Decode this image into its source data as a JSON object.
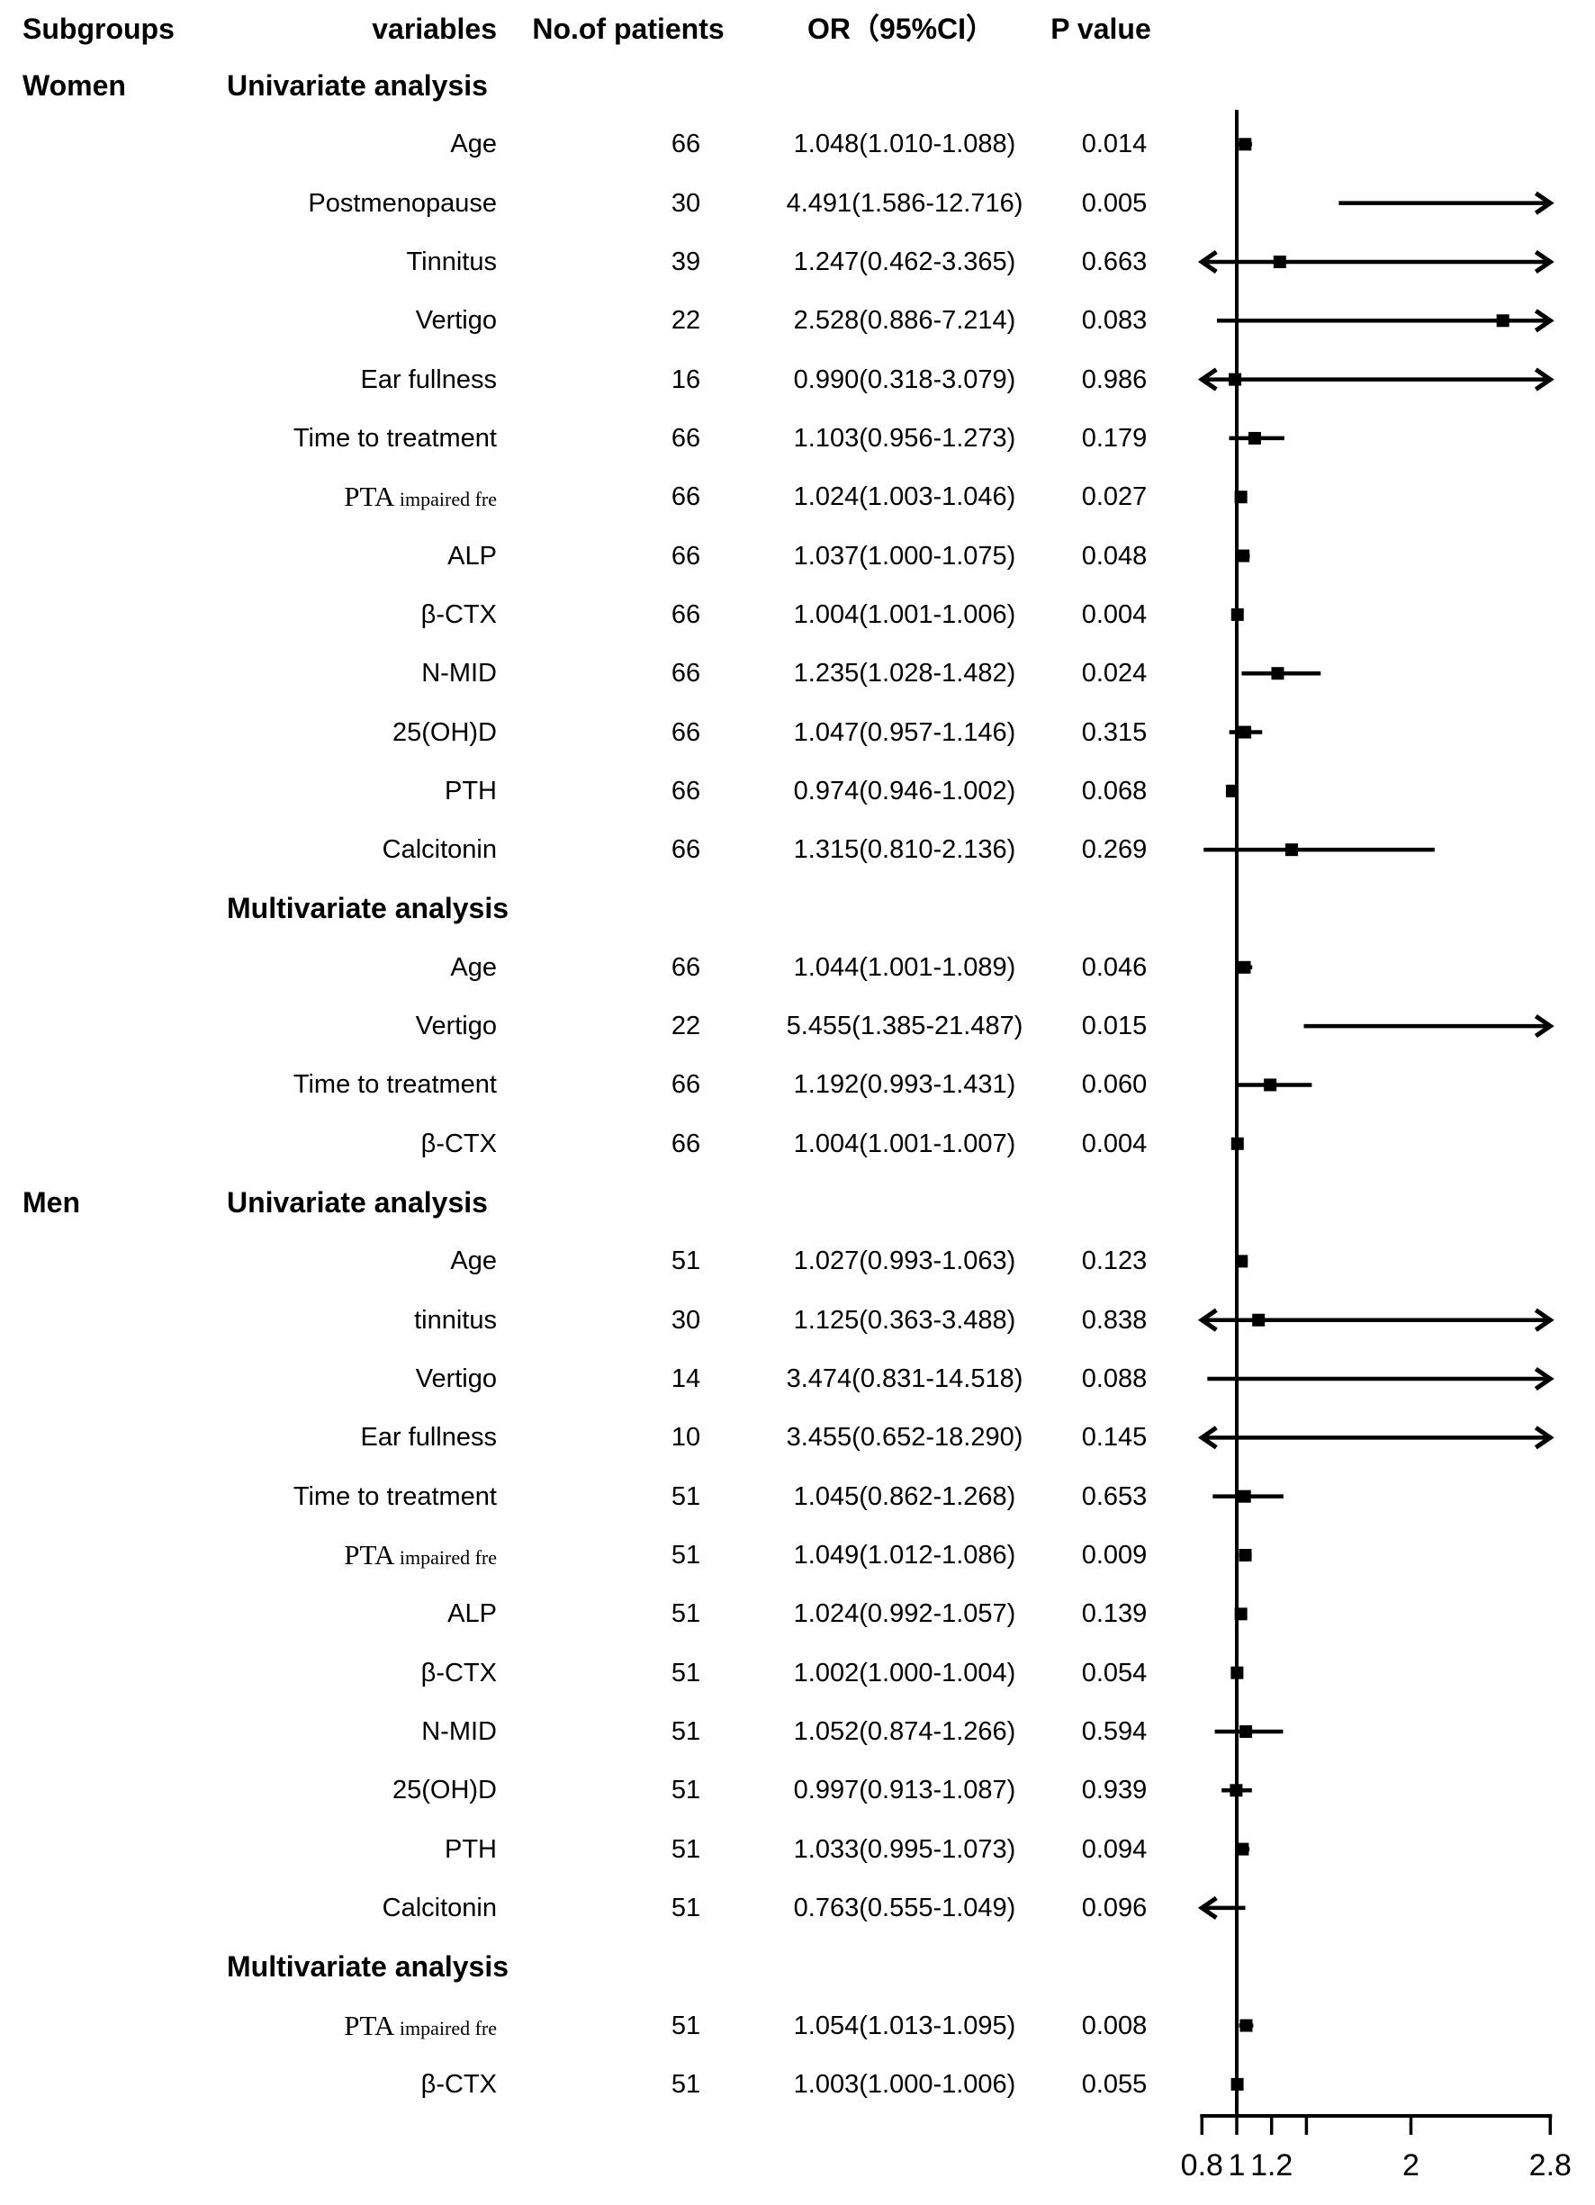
{
  "page": {
    "background": "#ffffff",
    "ink": "#000000"
  },
  "columns": {
    "subgroups": "Subgroups",
    "variables": "variables",
    "patients": "No.of patients",
    "or_ci": "OR（95%CI）",
    "p_value": "P value"
  },
  "chart_data": {
    "type": "forest",
    "xlabel": "",
    "xlim": [
      0.8,
      2.8
    ],
    "axis": {
      "min": 0.8,
      "max": 2.8,
      "reference_value": 1,
      "ticks": [
        {
          "v": 0.8,
          "label": "0.8"
        },
        {
          "v": 1,
          "label": "1"
        },
        {
          "v": 1.2,
          "label": "1.2"
        },
        {
          "v": 1.4,
          "label": ""
        },
        {
          "v": 2,
          "label": "2"
        },
        {
          "v": 2.8,
          "label": "2.8"
        }
      ]
    },
    "rows": [
      {
        "kind": "section",
        "subgroup": "Women",
        "label": "Univariate analysis"
      },
      {
        "kind": "data",
        "variable": "Age",
        "n": "66",
        "or_ci": "1.048(1.010-1.088)",
        "p": "0.014",
        "or": 1.048,
        "lo": 1.01,
        "hi": 1.088
      },
      {
        "kind": "data",
        "variable": "Postmenopause",
        "n": "30",
        "or_ci": "4.491(1.586-12.716)",
        "p": "0.005",
        "or": 4.491,
        "lo": 1.586,
        "hi": 12.716
      },
      {
        "kind": "data",
        "variable": "Tinnitus",
        "n": "39",
        "or_ci": "1.247(0.462-3.365)",
        "p": "0.663",
        "or": 1.247,
        "lo": 0.462,
        "hi": 3.365
      },
      {
        "kind": "data",
        "variable": "Vertigo",
        "n": "22",
        "or_ci": "2.528(0.886-7.214)",
        "p": "0.083",
        "or": 2.528,
        "lo": 0.886,
        "hi": 7.214
      },
      {
        "kind": "data",
        "variable": "Ear fullness",
        "n": "16",
        "or_ci": "0.990(0.318-3.079)",
        "p": "0.986",
        "or": 0.99,
        "lo": 0.318,
        "hi": 3.079
      },
      {
        "kind": "data",
        "variable": "Time to treatment",
        "n": "66",
        "or_ci": "1.103(0.956-1.273)",
        "p": "0.179",
        "or": 1.103,
        "lo": 0.956,
        "hi": 1.273
      },
      {
        "kind": "data",
        "variable": "PTA",
        "variable_sub": "impaired fre",
        "n": "66",
        "or_ci": "1.024(1.003-1.046)",
        "p": "0.027",
        "or": 1.024,
        "lo": 1.003,
        "hi": 1.046
      },
      {
        "kind": "data",
        "variable": "ALP",
        "n": "66",
        "or_ci": "1.037(1.000-1.075)",
        "p": "0.048",
        "or": 1.037,
        "lo": 1.0,
        "hi": 1.075
      },
      {
        "kind": "data",
        "variable": "β-CTX",
        "n": "66",
        "or_ci": "1.004(1.001-1.006)",
        "p": "0.004",
        "or": 1.004,
        "lo": 1.001,
        "hi": 1.006
      },
      {
        "kind": "data",
        "variable": "N-MID",
        "n": "66",
        "or_ci": "1.235(1.028-1.482)",
        "p": "0.024",
        "or": 1.235,
        "lo": 1.028,
        "hi": 1.482
      },
      {
        "kind": "data",
        "variable": "25(OH)D",
        "n": "66",
        "or_ci": "1.047(0.957-1.146)",
        "p": "0.315",
        "or": 1.047,
        "lo": 0.957,
        "hi": 1.146
      },
      {
        "kind": "data",
        "variable": "PTH",
        "n": "66",
        "or_ci": "0.974(0.946-1.002)",
        "p": "0.068",
        "or": 0.974,
        "lo": 0.946,
        "hi": 1.002
      },
      {
        "kind": "data",
        "variable": "Calcitonin",
        "n": "66",
        "or_ci": "1.315(0.810-2.136)",
        "p": "0.269",
        "or": 1.315,
        "lo": 0.81,
        "hi": 2.136
      },
      {
        "kind": "section",
        "subgroup": "",
        "label": "Multivariate analysis"
      },
      {
        "kind": "data",
        "variable": "Age",
        "n": "66",
        "or_ci": "1.044(1.001-1.089)",
        "p": "0.046",
        "or": 1.044,
        "lo": 1.001,
        "hi": 1.089
      },
      {
        "kind": "data",
        "variable": "Vertigo",
        "n": "22",
        "or_ci": "5.455(1.385-21.487)",
        "p": "0.015",
        "or": 5.455,
        "lo": 1.385,
        "hi": 21.487
      },
      {
        "kind": "data",
        "variable": "Time to treatment",
        "n": "66",
        "or_ci": "1.192(0.993-1.431)",
        "p": "0.060",
        "or": 1.192,
        "lo": 0.993,
        "hi": 1.431
      },
      {
        "kind": "data",
        "variable": "β-CTX",
        "n": "66",
        "or_ci": "1.004(1.001-1.007)",
        "p": "0.004",
        "or": 1.004,
        "lo": 1.001,
        "hi": 1.007
      },
      {
        "kind": "section",
        "subgroup": "Men",
        "label": "Univariate analysis"
      },
      {
        "kind": "data",
        "variable": "Age",
        "n": "51",
        "or_ci": "1.027(0.993-1.063)",
        "p": "0.123",
        "or": 1.027,
        "lo": 0.993,
        "hi": 1.063
      },
      {
        "kind": "data",
        "variable": "tinnitus",
        "n": "30",
        "or_ci": "1.125(0.363-3.488)",
        "p": "0.838",
        "or": 1.125,
        "lo": 0.363,
        "hi": 3.488
      },
      {
        "kind": "data",
        "variable": "Vertigo",
        "n": "14",
        "or_ci": "3.474(0.831-14.518)",
        "p": "0.088",
        "or": 3.474,
        "lo": 0.831,
        "hi": 14.518
      },
      {
        "kind": "data",
        "variable": "Ear fullness",
        "n": "10",
        "or_ci": "3.455(0.652-18.290)",
        "p": "0.145",
        "or": 3.455,
        "lo": 0.652,
        "hi": 18.29
      },
      {
        "kind": "data",
        "variable": "Time to treatment",
        "n": "51",
        "or_ci": "1.045(0.862-1.268)",
        "p": "0.653",
        "or": 1.045,
        "lo": 0.862,
        "hi": 1.268
      },
      {
        "kind": "data",
        "variable": "PTA",
        "variable_sub": "impaired fre",
        "n": "51",
        "or_ci": "1.049(1.012-1.086)",
        "p": "0.009",
        "or": 1.049,
        "lo": 1.012,
        "hi": 1.086
      },
      {
        "kind": "data",
        "variable": "ALP",
        "n": "51",
        "or_ci": "1.024(0.992-1.057)",
        "p": "0.139",
        "or": 1.024,
        "lo": 0.992,
        "hi": 1.057
      },
      {
        "kind": "data",
        "variable": "β-CTX",
        "n": "51",
        "or_ci": "1.002(1.000-1.004)",
        "p": "0.054",
        "or": 1.002,
        "lo": 1.0,
        "hi": 1.004
      },
      {
        "kind": "data",
        "variable": "N-MID",
        "n": "51",
        "or_ci": "1.052(0.874-1.266)",
        "p": "0.594",
        "or": 1.052,
        "lo": 0.874,
        "hi": 1.266
      },
      {
        "kind": "data",
        "variable": "25(OH)D",
        "n": "51",
        "or_ci": "0.997(0.913-1.087)",
        "p": "0.939",
        "or": 0.997,
        "lo": 0.913,
        "hi": 1.087
      },
      {
        "kind": "data",
        "variable": "PTH",
        "n": "51",
        "or_ci": "1.033(0.995-1.073)",
        "p": "0.094",
        "or": 1.033,
        "lo": 0.995,
        "hi": 1.073
      },
      {
        "kind": "data",
        "variable": "Calcitonin",
        "n": "51",
        "or_ci": "0.763(0.555-1.049)",
        "p": "0.096",
        "or": 0.763,
        "lo": 0.555,
        "hi": 1.049
      },
      {
        "kind": "section",
        "subgroup": "",
        "label": "Multivariate analysis"
      },
      {
        "kind": "data",
        "variable": "PTA",
        "variable_sub": "impaired fre",
        "n": "51",
        "or_ci": "1.054(1.013-1.095)",
        "p": "0.008",
        "or": 1.054,
        "lo": 1.013,
        "hi": 1.095
      },
      {
        "kind": "data",
        "variable": "β-CTX",
        "n": "51",
        "or_ci": "1.003(1.000-1.006)",
        "p": "0.055",
        "or": 1.003,
        "lo": 1.0,
        "hi": 1.006
      }
    ]
  }
}
